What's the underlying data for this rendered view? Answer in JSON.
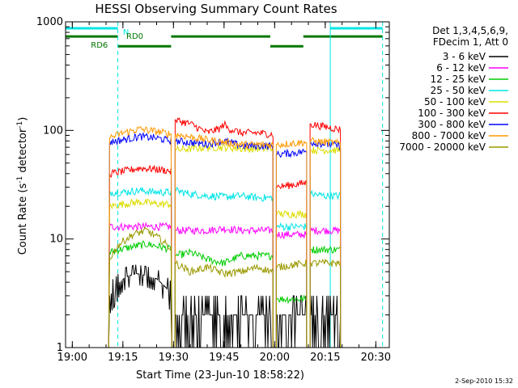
{
  "chart_data": {
    "type": "line",
    "title": "HESSI Observing Summary Count Rates",
    "xlabel": "Start Time (23-Jun-10 18:58:22)",
    "ylabel": "Count Rate (s",
    "ylabel_sup1": "-1",
    "ylabel_mid": " detector",
    "ylabel_sup2": "-1",
    "ylabel_end": ")",
    "yscale": "log",
    "ylim": [
      1,
      1000
    ],
    "xlim_minutes": [
      -2,
      94
    ],
    "x_ticks": [
      {
        "label": "19:00",
        "min": 0
      },
      {
        "label": "19:15",
        "min": 15
      },
      {
        "label": "19:30",
        "min": 30
      },
      {
        "label": "19:45",
        "min": 45
      },
      {
        "label": "20:00",
        "min": 60
      },
      {
        "label": "20:15",
        "min": 75
      },
      {
        "label": "20:30",
        "min": 90
      }
    ],
    "y_ticks": [
      {
        "label": "1",
        "value": 1
      },
      {
        "label": "10",
        "value": 10
      },
      {
        "label": "100",
        "value": 100
      },
      {
        "label": "1000",
        "value": 1000
      }
    ],
    "legend_header": [
      "Det 1,3,4,5,6,9,",
      "FDecim 1, Att 0"
    ],
    "series": [
      {
        "name": "3 - 6 keV",
        "color": "#000000",
        "style": "spiky",
        "segments": [
          [
            [
              10.8,
              1
            ],
            [
              11,
              3
            ],
            [
              13,
              3.5
            ],
            [
              14,
              4
            ],
            [
              16,
              4.5
            ],
            [
              19,
              4.8
            ],
            [
              22,
              4.6
            ],
            [
              25,
              4.3
            ],
            [
              28,
              3.5
            ],
            [
              29.5,
              3
            ]
          ],
          [
            [
              30.5,
              2
            ],
            [
              35,
              2
            ],
            [
              45,
              2
            ],
            [
              55,
              2
            ],
            [
              59.5,
              2
            ]
          ],
          [
            [
              60.5,
              2
            ],
            [
              69.5,
              2
            ]
          ],
          [
            [
              70.5,
              2
            ],
            [
              75,
              2
            ],
            [
              79.5,
              2
            ]
          ]
        ]
      },
      {
        "name": "6 - 12 keV",
        "color": "#ff00ff",
        "segments": [
          [
            [
              10.8,
              1
            ],
            [
              11,
              13
            ],
            [
              15,
              13
            ],
            [
              20,
              13
            ],
            [
              25,
              13
            ],
            [
              29.5,
              13
            ]
          ],
          [
            [
              30.5,
              12
            ],
            [
              40,
              12
            ],
            [
              45,
              12.5
            ],
            [
              50,
              12
            ],
            [
              59.5,
              12
            ]
          ],
          [
            [
              60.5,
              11
            ],
            [
              69.5,
              11
            ]
          ],
          [
            [
              70.5,
              12
            ],
            [
              75,
              12
            ],
            [
              79.5,
              12
            ]
          ]
        ]
      },
      {
        "name": "12 - 25 keV",
        "color": "#00cc00",
        "segments": [
          [
            [
              10.8,
              1
            ],
            [
              11,
              7.5
            ],
            [
              14,
              8
            ],
            [
              18,
              8.5
            ],
            [
              22,
              9
            ],
            [
              26,
              8.5
            ],
            [
              29.5,
              8
            ]
          ],
          [
            [
              30.5,
              7
            ],
            [
              35,
              7.5
            ],
            [
              40,
              6.5
            ],
            [
              45,
              6
            ],
            [
              50,
              7
            ],
            [
              55,
              7
            ],
            [
              59.5,
              7
            ]
          ],
          [
            [
              60.5,
              2.8
            ],
            [
              69.5,
              2.8
            ]
          ],
          [
            [
              70.5,
              8
            ],
            [
              75,
              8
            ],
            [
              79.5,
              8
            ]
          ]
        ]
      },
      {
        "name": "25 - 50 keV",
        "color": "#00e5e5",
        "segments": [
          [
            [
              10.8,
              1
            ],
            [
              11,
              27
            ],
            [
              15,
              27
            ],
            [
              20,
              28
            ],
            [
              25,
              27
            ],
            [
              29.5,
              27
            ]
          ],
          [
            [
              30.5,
              28
            ],
            [
              35,
              26
            ],
            [
              40,
              25
            ],
            [
              45,
              24.5
            ],
            [
              50,
              25
            ],
            [
              55,
              24
            ],
            [
              59.5,
              24
            ]
          ],
          [
            [
              60.5,
              13
            ],
            [
              69.5,
              13
            ]
          ],
          [
            [
              70.5,
              26
            ],
            [
              75,
              25
            ],
            [
              79.5,
              25
            ]
          ]
        ]
      },
      {
        "name": "50 - 100 keV",
        "color": "#dddd00",
        "segments": [
          [
            [
              10.8,
              1
            ],
            [
              11,
              20
            ],
            [
              15,
              21
            ],
            [
              20,
              22
            ],
            [
              25,
              21
            ],
            [
              29.5,
              21
            ]
          ],
          [
            [
              30.5,
              66
            ],
            [
              40,
              70
            ],
            [
              45,
              70
            ],
            [
              50,
              68
            ],
            [
              59.5,
              68
            ]
          ],
          [
            [
              60.5,
              17
            ],
            [
              69.5,
              17
            ]
          ],
          [
            [
              70.5,
              66
            ],
            [
              75,
              66
            ],
            [
              79.5,
              66
            ]
          ]
        ]
      },
      {
        "name": "100 - 300 keV",
        "color": "#ff0000",
        "segments": [
          [
            [
              10.8,
              1
            ],
            [
              11,
              40
            ],
            [
              15,
              42
            ],
            [
              20,
              45
            ],
            [
              25,
              44
            ],
            [
              29.5,
              42
            ]
          ],
          [
            [
              30.5,
              125
            ],
            [
              35,
              115
            ],
            [
              40,
              95
            ],
            [
              44,
              105
            ],
            [
              45,
              115
            ],
            [
              46,
              105
            ],
            [
              50,
              95
            ],
            [
              55,
              95
            ],
            [
              59.5,
              92
            ]
          ],
          [
            [
              60.5,
              30
            ],
            [
              69.5,
              33
            ]
          ],
          [
            [
              70.5,
              115
            ],
            [
              75,
              108
            ],
            [
              79.5,
              102
            ]
          ]
        ]
      },
      {
        "name": "300 - 800 keV",
        "color": "#0000ff",
        "segments": [
          [
            [
              10.8,
              1
            ],
            [
              11,
              78
            ],
            [
              15,
              82
            ],
            [
              20,
              88
            ],
            [
              25,
              85
            ],
            [
              29.5,
              80
            ]
          ],
          [
            [
              30.5,
              80
            ],
            [
              40,
              75
            ],
            [
              45,
              80
            ],
            [
              50,
              72
            ],
            [
              59.5,
              72
            ]
          ],
          [
            [
              60.5,
              60
            ],
            [
              69.5,
              64
            ]
          ],
          [
            [
              70.5,
              78
            ],
            [
              75,
              75
            ],
            [
              79.5,
              72
            ]
          ]
        ]
      },
      {
        "name": "800 - 7000 keV",
        "color": "#ff9900",
        "segments": [
          [
            [
              10.8,
              1
            ],
            [
              11,
              85
            ],
            [
              15,
              95
            ],
            [
              20,
              103
            ],
            [
              25,
              98
            ],
            [
              29.5,
              92
            ]
          ],
          [
            [
              30.5,
              92
            ],
            [
              40,
              82
            ],
            [
              45,
              78
            ],
            [
              50,
              74
            ],
            [
              59.5,
              74
            ]
          ],
          [
            [
              60.5,
              74
            ],
            [
              69.5,
              78
            ]
          ],
          [
            [
              70.5,
              80
            ],
            [
              75,
              78
            ],
            [
              79.5,
              76
            ]
          ]
        ]
      },
      {
        "name": "7000 - 20000 keV",
        "color": "#999900",
        "segments": [
          [
            [
              10.8,
              1
            ],
            [
              11,
              6.5
            ],
            [
              14,
              9
            ],
            [
              18,
              11
            ],
            [
              22,
              12
            ],
            [
              26,
              10
            ],
            [
              29.5,
              8
            ]
          ],
          [
            [
              30.5,
              6
            ],
            [
              35,
              5
            ],
            [
              40,
              5.5
            ],
            [
              45,
              4.8
            ],
            [
              50,
              5
            ],
            [
              55,
              5.5
            ],
            [
              59.5,
              5
            ]
          ],
          [
            [
              60.5,
              5.5
            ],
            [
              69.5,
              6
            ]
          ],
          [
            [
              70.5,
              6
            ],
            [
              75,
              6
            ],
            [
              79.5,
              6
            ]
          ]
        ]
      }
    ],
    "flags": [
      {
        "name": "N",
        "color": "#00e5e5",
        "level_frac": 0.985,
        "ranges": [
          [
            -2,
            13.5
          ],
          [
            76.5,
            92
          ]
        ]
      },
      {
        "name": "RD0",
        "color": "#007700",
        "level_frac": 0.96,
        "ranges": [
          [
            -2,
            13.5
          ],
          [
            29.3,
            58.7
          ],
          [
            68.5,
            92
          ]
        ]
      },
      {
        "name": "RD6",
        "color": "#007700",
        "level_frac": 0.93,
        "ranges": [
          [
            13.5,
            29.3
          ],
          [
            58.7,
            68.5
          ]
        ]
      }
    ],
    "vlines": [
      {
        "min": -2,
        "color": "#00e5e5",
        "dash": false
      },
      {
        "min": 13.5,
        "color": "#00e5e5",
        "dash": true
      },
      {
        "min": 76.5,
        "color": "#00e5e5",
        "dash": false
      },
      {
        "min": 92,
        "color": "#00e5e5",
        "dash": true
      }
    ],
    "footer_date": "2-Sep-2010 15:32"
  }
}
